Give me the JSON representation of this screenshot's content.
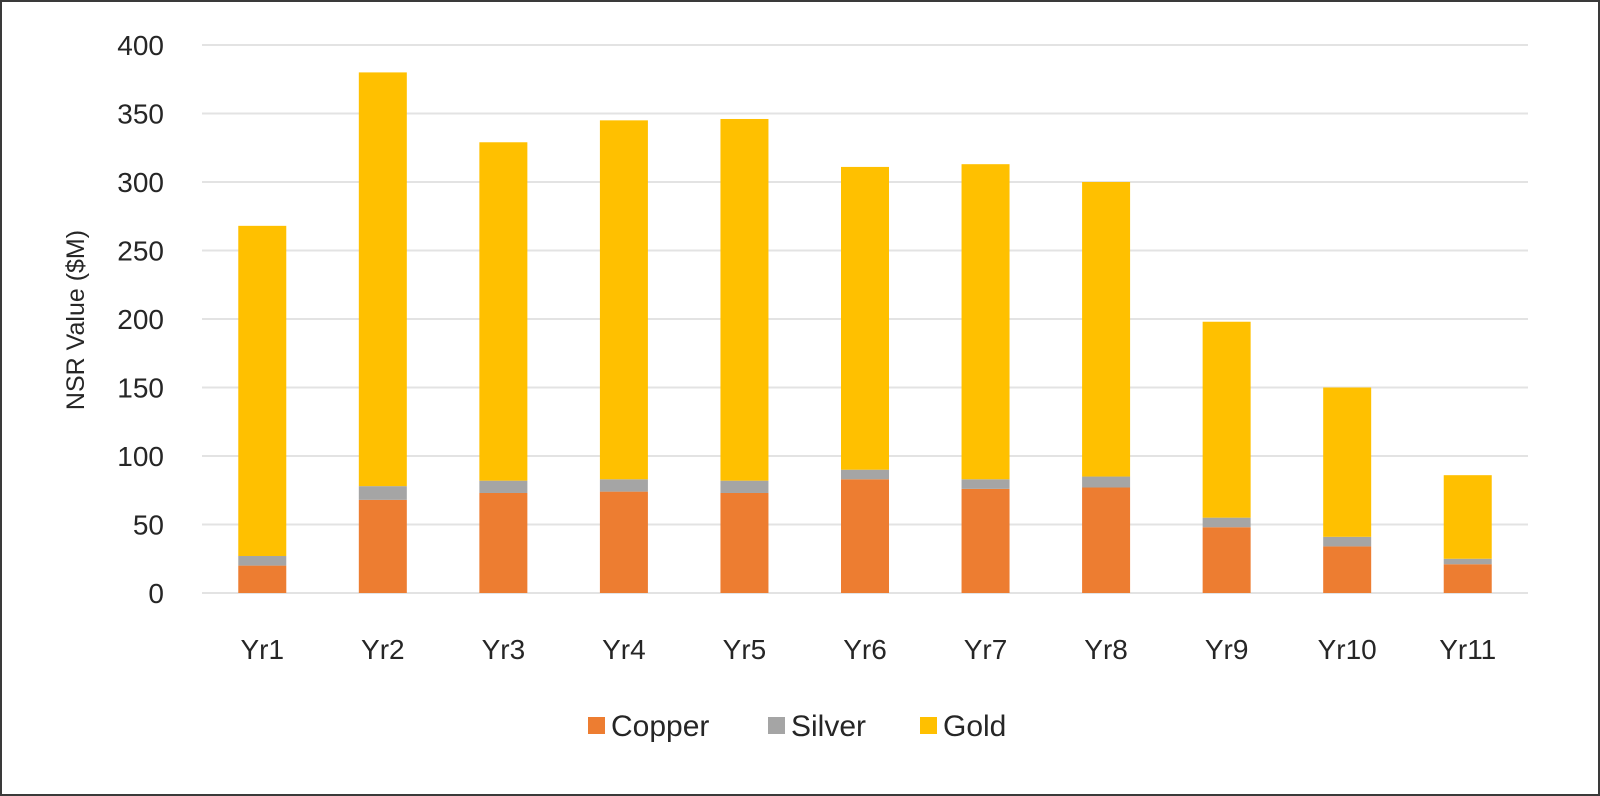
{
  "chart_data": {
    "type": "bar",
    "stacked": true,
    "title": "",
    "xlabel": "",
    "ylabel": "NSR Value ($M)",
    "ylim": [
      0,
      400
    ],
    "yticks": [
      0,
      50,
      100,
      150,
      200,
      250,
      300,
      350,
      400
    ],
    "grid": true,
    "legend_position": "bottom",
    "categories": [
      "Yr1",
      "Yr2",
      "Yr3",
      "Yr4",
      "Yr5",
      "Yr6",
      "Yr7",
      "Yr8",
      "Yr9",
      "Yr10",
      "Yr11"
    ],
    "series": [
      {
        "name": "Copper",
        "color": "#ED7D31",
        "values": [
          20,
          68,
          73,
          74,
          73,
          83,
          76,
          77,
          48,
          34,
          21
        ]
      },
      {
        "name": "Silver",
        "color": "#A5A5A5",
        "values": [
          7,
          10,
          9,
          9,
          9,
          7,
          7,
          8,
          7,
          7,
          4
        ]
      },
      {
        "name": "Gold",
        "color": "#FFC000",
        "values": [
          241,
          302,
          247,
          262,
          264,
          221,
          230,
          215,
          143,
          109,
          61
        ]
      }
    ]
  }
}
